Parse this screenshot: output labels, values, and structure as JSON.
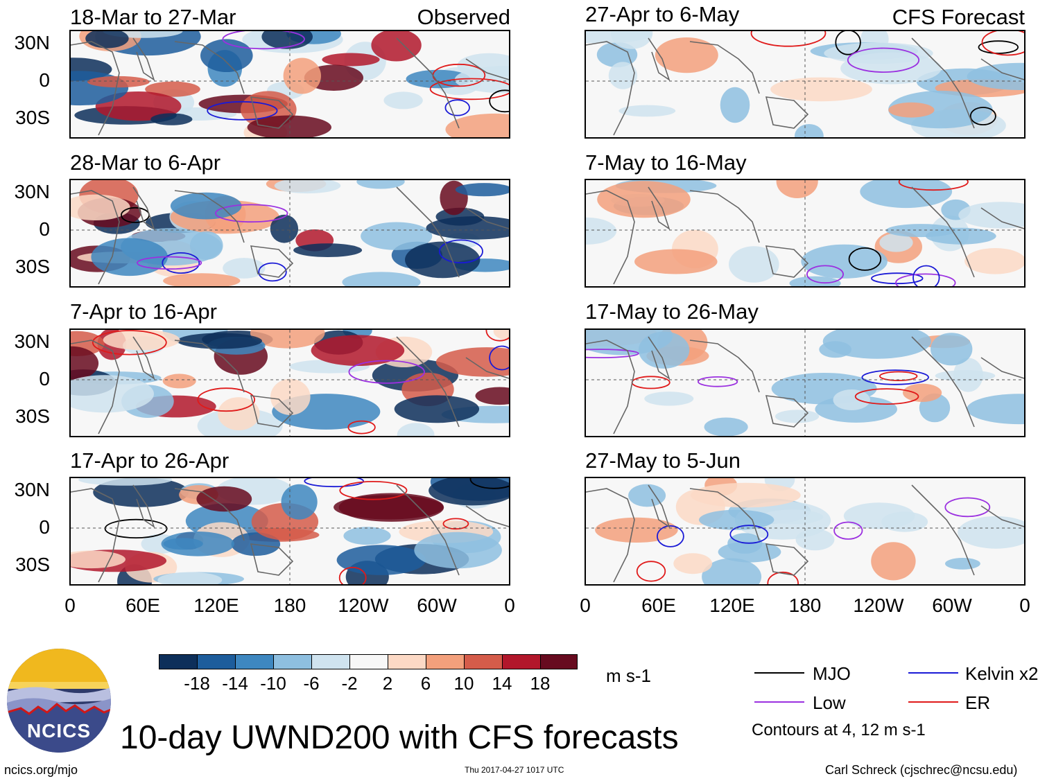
{
  "panels": {
    "observed": [
      {
        "title": "18-Mar to 27-Mar",
        "tag": "Observed"
      },
      {
        "title": "28-Mar to 6-Apr",
        "tag": ""
      },
      {
        "title": "7-Apr to 16-Apr",
        "tag": ""
      },
      {
        "title": "17-Apr to 26-Apr",
        "tag": ""
      }
    ],
    "forecast": [
      {
        "title": "27-Apr to 6-May",
        "tag": "CFS Forecast"
      },
      {
        "title": "7-May to 16-May",
        "tag": ""
      },
      {
        "title": "17-May to 26-May",
        "tag": ""
      },
      {
        "title": "27-May to 5-Jun",
        "tag": ""
      }
    ]
  },
  "lat_labels": [
    "30N",
    "0",
    "30S"
  ],
  "lon_labels": [
    "0",
    "60E",
    "120E",
    "180",
    "120W",
    "60W",
    "0"
  ],
  "colorbar": {
    "colors": [
      "#0d2f5a",
      "#1d5d9c",
      "#3e87c0",
      "#8ebfe0",
      "#cfe3ef",
      "#f7f7f7",
      "#fcd9c5",
      "#f3a07c",
      "#d55c4a",
      "#b2172b",
      "#670b1f"
    ],
    "ticks": [
      "-18",
      "-14",
      "-10",
      "-6",
      "-2",
      "2",
      "6",
      "10",
      "14",
      "18"
    ],
    "units": "m s-1"
  },
  "legend": {
    "items": [
      {
        "label": "MJO",
        "color": "#000000"
      },
      {
        "label": "Kelvin x2",
        "color": "#1a1ad6"
      },
      {
        "label": "Low",
        "color": "#9b30e0"
      },
      {
        "label": "ER",
        "color": "#e01a1a"
      }
    ],
    "contours_note": "Contours at 4, 12 m s-1"
  },
  "title": "10-day UWND200 with CFS forecasts",
  "footer": {
    "url": "ncics.org/mjo",
    "timestamp": "Thu 2017-04-27 1017 UTC",
    "author": "Carl Schreck (cjschrec@ncsu.edu)"
  },
  "logo": {
    "text": "NCICS"
  }
}
